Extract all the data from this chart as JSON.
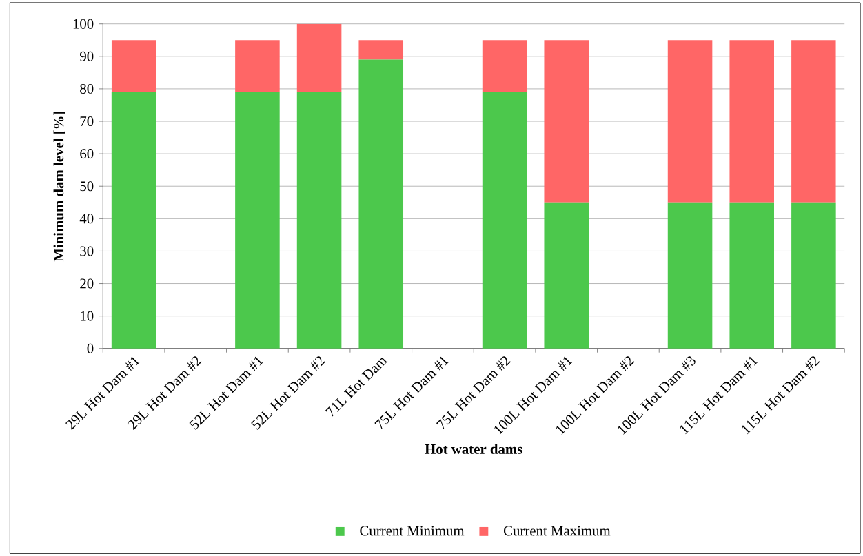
{
  "chart_data": {
    "type": "bar",
    "stacked": true,
    "xlabel": "Hot water dams",
    "ylabel": "Minimum dam level [%]",
    "categories": [
      "29L Hot Dam #1",
      "29L Hot Dam #2",
      "52L Hot Dam #1",
      "52L Hot Dam #2",
      "71L Hot Dam",
      "75L Hot Dam #1",
      "75L Hot Dam #2",
      "100L Hot Dam #1",
      "100L Hot Dam #2",
      "100L Hot Dam #3",
      "115L Hot Dam #1",
      "115L Hot Dam #2"
    ],
    "series": [
      {
        "name": "Current Minimum",
        "color": "#4cc84c",
        "values": [
          79,
          null,
          79,
          79,
          89,
          null,
          79,
          45,
          null,
          45,
          45,
          45
        ]
      },
      {
        "name": "Current Maximum",
        "color": "#ff6666",
        "values": [
          16,
          null,
          16,
          21,
          6,
          null,
          16,
          50,
          null,
          50,
          50,
          50
        ]
      }
    ],
    "ylim": [
      0,
      100
    ],
    "yticks": [
      0,
      10,
      20,
      30,
      40,
      50,
      60,
      70,
      80,
      90,
      100
    ],
    "grid": "y",
    "legend": "bottom"
  }
}
